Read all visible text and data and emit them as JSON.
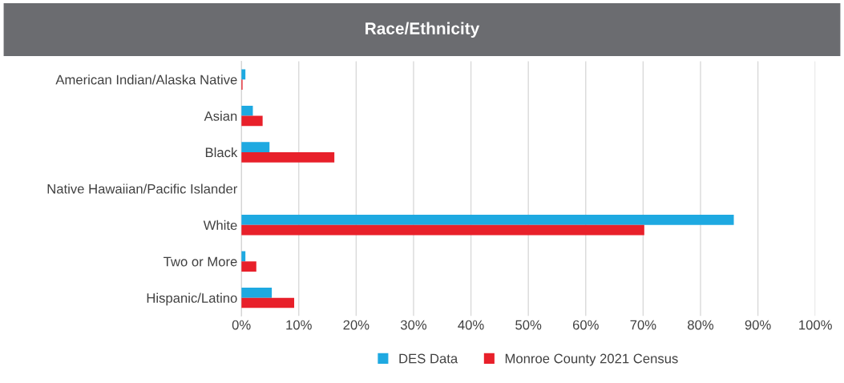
{
  "chart_data": {
    "type": "bar",
    "orientation": "horizontal",
    "title": "Race/Ethnicity",
    "categories": [
      "American Indian/Alaska Native",
      "Asian",
      "Black",
      "Native Hawaiian/Pacific Islander",
      "White",
      "Two or More",
      "Hispanic/Latino"
    ],
    "series": [
      {
        "name": "DES Data",
        "color": "#1ea9e1",
        "values": [
          0.7,
          2.0,
          4.9,
          0,
          85.8,
          0.7,
          5.3
        ]
      },
      {
        "name": "Monroe County 2021 Census",
        "color": "#e8202a",
        "values": [
          0.2,
          3.7,
          16.2,
          null,
          70.2,
          2.6,
          9.2
        ]
      }
    ],
    "xlim": [
      0,
      100
    ],
    "xticks": [
      {
        "value": 0,
        "label": "0%"
      },
      {
        "value": 10,
        "label": "10%"
      },
      {
        "value": 20,
        "label": "20%"
      },
      {
        "value": 30,
        "label": "30%"
      },
      {
        "value": 40,
        "label": "40%"
      },
      {
        "value": 50,
        "label": "50%"
      },
      {
        "value": 60,
        "label": "60%"
      },
      {
        "value": 70,
        "label": "70%"
      },
      {
        "value": 80,
        "label": "80%"
      },
      {
        "value": 90,
        "label": "90%"
      },
      {
        "value": 100,
        "label": "100%"
      }
    ],
    "grid": "x",
    "legend": "bottom"
  }
}
